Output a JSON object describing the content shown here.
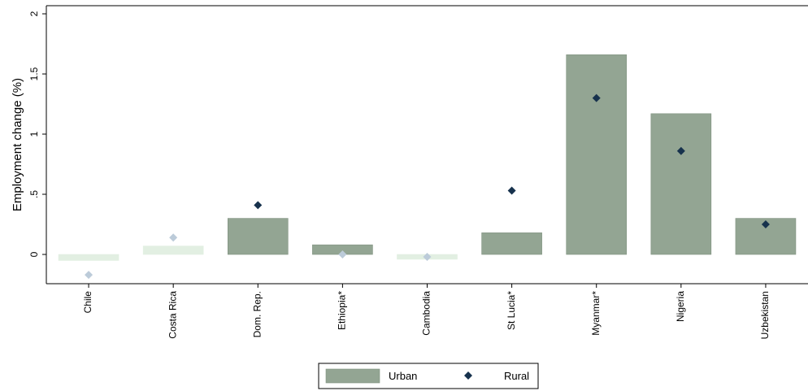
{
  "chart_data": {
    "type": "bar",
    "title": "",
    "xlabel": "",
    "ylabel": "Employment change (%)",
    "ylim": [
      -0.25,
      2
    ],
    "yticks": [
      0,
      0.5,
      1,
      1.5,
      2
    ],
    "ytick_labels": [
      "0",
      ".5",
      "1",
      "1.5",
      "2"
    ],
    "grid": false,
    "categories": [
      "Chile",
      "Costa Rica",
      "Dom. Rep.",
      "Ethiopia*",
      "Cambodia",
      "St Lucia*",
      "Myanmar*",
      "Nigeria",
      "Uzbekistan"
    ],
    "series": [
      {
        "name": "Urban",
        "mark": "bar",
        "values": [
          -0.05,
          0.07,
          0.3,
          0.08,
          -0.04,
          0.18,
          1.66,
          1.17,
          0.3
        ],
        "significant": [
          false,
          false,
          true,
          true,
          false,
          true,
          true,
          true,
          true
        ],
        "color": "#93a593",
        "faded_color": "#e2efe2"
      },
      {
        "name": "Rural",
        "mark": "diamond",
        "values": [
          -0.17,
          0.14,
          0.41,
          0.0,
          -0.02,
          0.53,
          1.3,
          0.86,
          0.25
        ],
        "significant": [
          false,
          false,
          true,
          false,
          false,
          true,
          true,
          true,
          true
        ],
        "color": "#17324d",
        "faded_color": "#bccbd9"
      }
    ],
    "legend": {
      "position": "bottom-center",
      "entries": [
        "Urban",
        "Rural"
      ]
    }
  }
}
